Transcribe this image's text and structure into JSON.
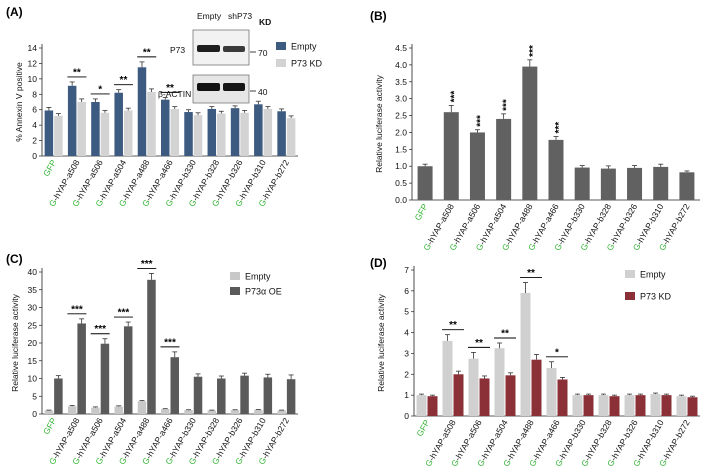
{
  "figure": {
    "green_color": "#33b533",
    "green_prefix": "G",
    "categories": [
      "GFP",
      "G-hYAP-a508",
      "G-hYAP-a506",
      "G-hYAP-a504",
      "G-hYAP-a488",
      "G-hYAP-a466",
      "G-hYAP-b330",
      "G-hYAP-b328",
      "G-hYAP-b326",
      "G-hYAP-b310",
      "G-hYAP-b272"
    ],
    "category_suffixes": [
      "",
      "-hYAP-a508",
      "-hYAP-a506",
      "-hYAP-a504",
      "-hYAP-a488",
      "-hYAP-a466",
      "-hYAP-b330",
      "-hYAP-b328",
      "-hYAP-b326",
      "-hYAP-b310",
      "-hYAP-b272"
    ]
  },
  "chart_data": [
    {
      "panel": "(A)",
      "type": "bar",
      "ylabel": "% Annexin V positive",
      "ylim": [
        0,
        14
      ],
      "yticks": [
        0,
        2,
        4,
        6,
        8,
        10,
        12,
        14
      ],
      "legend": [
        "Empty",
        "P73 KD"
      ],
      "series": [
        {
          "name": "Empty",
          "color": "#3d5a80",
          "values": [
            5.9,
            9.1,
            7.0,
            8.2,
            11.5,
            7.3,
            5.7,
            6.1,
            6.2,
            6.7,
            5.8
          ],
          "errors": [
            0.4,
            0.5,
            0.4,
            0.4,
            0.7,
            0.3,
            0.3,
            0.3,
            0.3,
            0.4,
            0.3
          ]
        },
        {
          "name": "P73 KD",
          "color": "#d3d3d3",
          "values": [
            5.2,
            7.0,
            5.6,
            5.9,
            8.3,
            6.1,
            5.3,
            5.5,
            5.6,
            6.1,
            4.9
          ],
          "errors": [
            0.3,
            0.4,
            0.3,
            0.3,
            0.4,
            0.3,
            0.3,
            0.3,
            0.3,
            0.3,
            0.3
          ]
        }
      ],
      "significance": [
        {
          "index": 1,
          "label": "**"
        },
        {
          "index": 2,
          "label": "*"
        },
        {
          "index": 3,
          "label": "**"
        },
        {
          "index": 4,
          "label": "**"
        },
        {
          "index": 5,
          "label": "**"
        }
      ],
      "inset_blot": {
        "lanes": [
          "Empty",
          "shP73"
        ],
        "header": "KD",
        "rows": [
          {
            "label": "P73",
            "marker": "70"
          },
          {
            "label": "β-ACTIN",
            "marker": "40"
          }
        ]
      }
    },
    {
      "panel": "(B)",
      "type": "bar",
      "ylabel": "Relative luciferase activity",
      "ylim": [
        0,
        4.5
      ],
      "yticks": [
        0.0,
        0.5,
        1.0,
        1.5,
        2.0,
        2.5,
        3.0,
        3.5,
        4.0,
        4.5
      ],
      "series": [
        {
          "name": "Luciferase",
          "color": "#616161",
          "values": [
            1.0,
            2.6,
            2.0,
            2.4,
            3.95,
            1.78,
            0.96,
            0.93,
            0.95,
            0.98,
            0.82
          ],
          "errors": [
            0.06,
            0.2,
            0.08,
            0.15,
            0.2,
            0.1,
            0.06,
            0.08,
            0.07,
            0.08,
            0.04
          ]
        }
      ],
      "significance": [
        {
          "index": 1,
          "label": "***"
        },
        {
          "index": 2,
          "label": "***"
        },
        {
          "index": 3,
          "label": "***"
        },
        {
          "index": 4,
          "label": "***"
        },
        {
          "index": 5,
          "label": "***"
        }
      ]
    },
    {
      "panel": "(C)",
      "type": "bar",
      "ylabel": "Relative luciferase activity",
      "ylim": [
        0,
        40
      ],
      "yticks": [
        0,
        5,
        10,
        15,
        20,
        25,
        30,
        35,
        40
      ],
      "legend": [
        "Empty",
        "P73α OE"
      ],
      "series": [
        {
          "name": "Empty",
          "color": "#c8c8c8",
          "values": [
            1.0,
            2.2,
            1.8,
            2.1,
            3.6,
            1.4,
            1.1,
            1.0,
            1.1,
            1.2,
            1.0
          ],
          "errors": [
            0.1,
            0.2,
            0.2,
            0.2,
            0.2,
            0.1,
            0.1,
            0.1,
            0.1,
            0.1,
            0.1
          ]
        },
        {
          "name": "P73α OE",
          "color": "#5a5a5a",
          "values": [
            10.0,
            25.5,
            19.8,
            24.7,
            37.8,
            16.0,
            10.5,
            10.0,
            10.8,
            10.3,
            9.8
          ],
          "errors": [
            0.8,
            1.3,
            1.4,
            1.2,
            1.8,
            1.5,
            0.8,
            0.7,
            0.7,
            0.9,
            1.2
          ]
        }
      ],
      "significance": [
        {
          "index": 1,
          "label": "***"
        },
        {
          "index": 2,
          "label": "***"
        },
        {
          "index": 3,
          "label": "***"
        },
        {
          "index": 4,
          "label": "***"
        },
        {
          "index": 5,
          "label": "***"
        }
      ]
    },
    {
      "panel": "(D)",
      "type": "bar",
      "ylabel": "Relative luciferase activity",
      "ylim": [
        0,
        7
      ],
      "yticks": [
        0,
        1,
        2,
        3,
        4,
        5,
        6,
        7
      ],
      "legend": [
        "Empty",
        "P73 KD"
      ],
      "series": [
        {
          "name": "Empty",
          "color": "#d0d0d0",
          "values": [
            1.0,
            3.6,
            2.75,
            3.25,
            5.9,
            2.3,
            1.0,
            1.0,
            1.0,
            1.05,
            0.95
          ],
          "errors": [
            0.05,
            0.3,
            0.3,
            0.25,
            0.5,
            0.3,
            0.05,
            0.05,
            0.05,
            0.05,
            0.05
          ]
        },
        {
          "name": "P73 KD",
          "color": "#8b3037",
          "values": [
            0.95,
            2.0,
            1.8,
            1.95,
            2.7,
            1.75,
            1.0,
            0.95,
            1.0,
            1.0,
            0.9
          ],
          "errors": [
            0.05,
            0.15,
            0.12,
            0.12,
            0.25,
            0.1,
            0.05,
            0.05,
            0.05,
            0.05,
            0.05
          ]
        }
      ],
      "significance": [
        {
          "index": 1,
          "label": "**"
        },
        {
          "index": 2,
          "label": "**"
        },
        {
          "index": 3,
          "label": "**"
        },
        {
          "index": 4,
          "label": "**"
        },
        {
          "index": 5,
          "label": "*"
        }
      ]
    }
  ]
}
